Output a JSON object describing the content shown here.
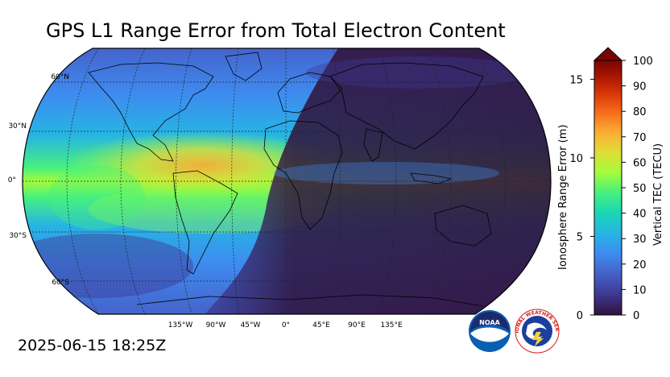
{
  "title": "GPS L1 Range Error from Total Electron Content",
  "timestamp": "2025-06-15 18:25Z",
  "map": {
    "lat_labels": [
      "60°N",
      "30°N",
      "0°",
      "30°S",
      "60°S"
    ],
    "lon_labels": [
      "135°W",
      "90°W",
      "45°W",
      "0°",
      "45°E",
      "90°E",
      "135°E"
    ],
    "lat_values": [
      60,
      30,
      0,
      -30,
      -60
    ],
    "lon_values": [
      -135,
      -90,
      -45,
      0,
      45,
      90,
      135
    ]
  },
  "colorbar": {
    "left_axis_label": "Ionosphere Range Error (m)",
    "right_axis_label": "Vertical TEC (TECU)",
    "left_ticks": [
      "15",
      "10",
      "5",
      "0"
    ],
    "left_tick_values": [
      15,
      10,
      5,
      0
    ],
    "right_ticks": [
      "100",
      "90",
      "80",
      "70",
      "60",
      "50",
      "40",
      "30",
      "20",
      "10",
      "0"
    ],
    "right_tick_values": [
      100,
      90,
      80,
      70,
      60,
      50,
      40,
      30,
      20,
      10,
      0
    ],
    "range_tecu": [
      0,
      100
    ],
    "range_m": [
      0,
      16.2
    ],
    "extend": "max",
    "colors": [
      "#30123b",
      "#3e3891",
      "#4560c8",
      "#3e8bf0",
      "#26b4e4",
      "#1ad6b5",
      "#46f07f",
      "#a4fc3b",
      "#e1dd37",
      "#fcab35",
      "#f56918",
      "#d23105",
      "#a01101",
      "#7a0403"
    ]
  },
  "logos": {
    "noaa_text": "NOAA",
    "nws_text": "NATIONAL WEATHER SERVICE"
  }
}
